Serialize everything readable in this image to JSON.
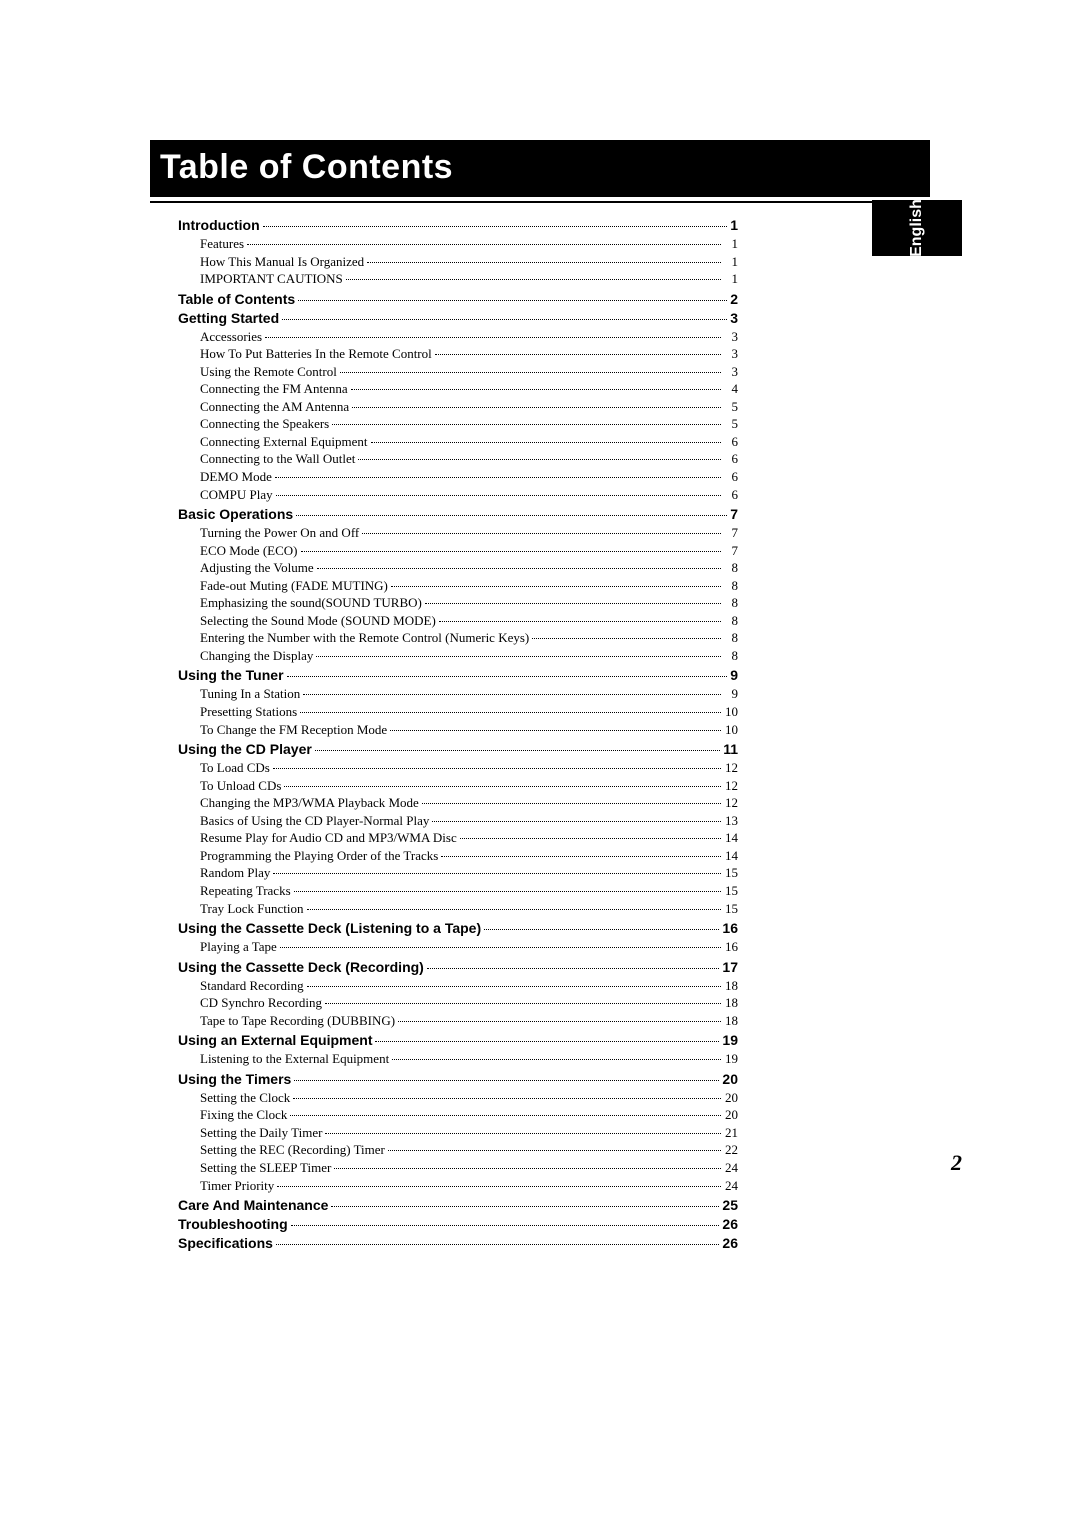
{
  "title": "Table of Contents",
  "language_tab": "English",
  "page_number": "2",
  "toc": [
    {
      "type": "section",
      "title": "Introduction",
      "page": "1",
      "items": [
        {
          "title": "Features",
          "page": "1"
        },
        {
          "title": "How This Manual Is Organized",
          "page": "1"
        },
        {
          "title": "IMPORTANT CAUTIONS",
          "page": "1"
        }
      ]
    },
    {
      "type": "section",
      "title": "Table of Contents",
      "page": "2",
      "items": []
    },
    {
      "type": "section",
      "title": "Getting Started",
      "page": "3",
      "items": [
        {
          "title": "Accessories",
          "page": "3"
        },
        {
          "title": "How To Put Batteries In the Remote Control",
          "page": "3"
        },
        {
          "title": "Using the Remote Control",
          "page": "3"
        },
        {
          "title": "Connecting the FM Antenna",
          "page": "4"
        },
        {
          "title": "Connecting the AM Antenna",
          "page": "5"
        },
        {
          "title": "Connecting the Speakers",
          "page": "5"
        },
        {
          "title": "Connecting External Equipment",
          "page": "6"
        },
        {
          "title": "Connecting to the Wall Outlet",
          "page": "6"
        },
        {
          "title": "DEMO Mode",
          "page": "6"
        },
        {
          "title": "COMPU Play",
          "page": "6"
        }
      ]
    },
    {
      "type": "section",
      "title": "Basic Operations",
      "page": "7",
      "items": [
        {
          "title": "Turning the Power On and Off",
          "page": "7"
        },
        {
          "title": "ECO Mode (ECO)",
          "page": "7"
        },
        {
          "title": "Adjusting the Volume",
          "page": "8"
        },
        {
          "title": "Fade-out Muting (FADE MUTING)",
          "page": "8"
        },
        {
          "title": "Emphasizing the sound(SOUND TURBO)",
          "page": "8"
        },
        {
          "title": "Selecting the Sound Mode (SOUND MODE)",
          "page": "8"
        },
        {
          "title": "Entering the Number with the Remote Control (Numeric Keys)",
          "page": "8"
        },
        {
          "title": "Changing the Display",
          "page": "8"
        }
      ]
    },
    {
      "type": "section",
      "title": "Using the Tuner",
      "page": "9",
      "items": [
        {
          "title": "Tuning In a Station",
          "page": "9"
        },
        {
          "title": "Presetting Stations",
          "page": "10"
        },
        {
          "title": "To Change the FM Reception Mode",
          "page": "10"
        }
      ]
    },
    {
      "type": "section",
      "title": "Using the CD Player",
      "page": "11",
      "items": [
        {
          "title": "To Load CDs",
          "page": "12"
        },
        {
          "title": "To Unload CDs",
          "page": "12"
        },
        {
          "title": "Changing the MP3/WMA Playback Mode",
          "page": "12"
        },
        {
          "title": "Basics of Using the CD Player-Normal Play",
          "page": "13"
        },
        {
          "title": "Resume Play for Audio CD and MP3/WMA Disc",
          "page": "14"
        },
        {
          "title": "Programming the Playing Order of the Tracks",
          "page": "14"
        },
        {
          "title": "Random Play",
          "page": "15"
        },
        {
          "title": "Repeating Tracks",
          "page": "15"
        },
        {
          "title": "Tray Lock Function",
          "page": "15"
        }
      ]
    },
    {
      "type": "section",
      "title": "Using the Cassette Deck (Listening to a Tape)",
      "page": "16",
      "items": [
        {
          "title": "Playing a Tape",
          "page": "16"
        }
      ]
    },
    {
      "type": "section",
      "title": "Using the Cassette Deck  (Recording)",
      "page": "17",
      "items": [
        {
          "title": "Standard Recording",
          "page": "18"
        },
        {
          "title": "CD Synchro Recording",
          "page": "18"
        },
        {
          "title": "Tape to Tape Recording (DUBBING)",
          "page": "18"
        }
      ]
    },
    {
      "type": "section",
      "title": "Using an External Equipment",
      "page": "19",
      "items": [
        {
          "title": "Listening to the External Equipment",
          "page": "19"
        }
      ]
    },
    {
      "type": "section",
      "title": "Using the Timers",
      "page": "20",
      "items": [
        {
          "title": "Setting the Clock",
          "page": "20"
        },
        {
          "title": "Fixing the Clock",
          "page": "20"
        },
        {
          "title": "Setting the Daily Timer",
          "page": "21"
        },
        {
          "title": "Setting the REC (Recording) Timer",
          "page": "22"
        },
        {
          "title": "Setting the SLEEP Timer",
          "page": "24"
        },
        {
          "title": "Timer Priority",
          "page": "24"
        }
      ]
    },
    {
      "type": "section",
      "title": "Care And Maintenance",
      "page": "25",
      "items": []
    },
    {
      "type": "section",
      "title": "Troubleshooting",
      "page": "26",
      "items": []
    },
    {
      "type": "section",
      "title": "Specifications",
      "page": "26",
      "items": []
    }
  ]
}
